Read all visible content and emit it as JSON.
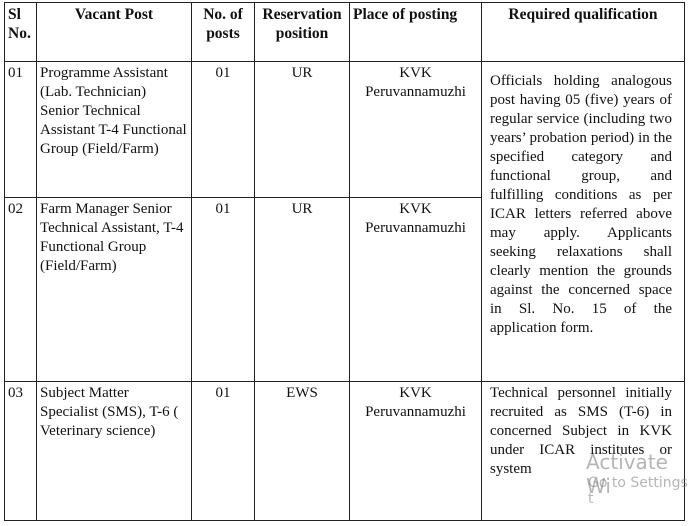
{
  "table": {
    "header": [
      "Sl No.",
      "Vacant Post",
      "No. of posts",
      "Reservation position",
      "Place of posting",
      "Required qualification"
    ],
    "rows": [
      {
        "sl_no": "01",
        "post": "Programme Assistant (Lab. Technician) Senior Technical Assistant T-4 Functional Group (Field/Farm)",
        "posts": "01",
        "reservation": "UR",
        "place": "KVK Peruvannamuzhi",
        "qualification": "Officials holding analogous post having 05 (five) years of regular service (including two years’ probation period) in the specified category and functional group, and fulfilling conditions as per ICAR letters referred above may apply. Applicants seeking relaxations shall clearly mention the grounds against the concerned space in Sl. No. 15 of the application form."
      },
      {
        "sl_no": "02",
        "post": "Farm Manager Senior Technical Assistant, T-4 Functional Group (Field/Farm)",
        "posts": "01",
        "reservation": "UR",
        "place": "KVK Peruvannamuzhi"
      },
      {
        "sl_no": "03",
        "post": "Subject Matter Specialist (SMS), T-6 ( Veterinary science)",
        "posts": "01",
        "reservation": "EWS",
        "place": "KVK Peruvannamuzhi",
        "qualification": "Technical personnel initially recruited as SMS (T-6) in concerned Subject in KVK under ICAR institutes or system"
      }
    ]
  },
  "watermark": {
    "title": "Activate Wi",
    "subtitle": "Go to Settings t"
  }
}
